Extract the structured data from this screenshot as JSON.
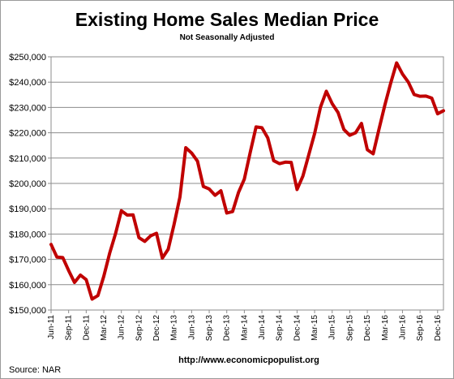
{
  "chart_data": {
    "type": "line",
    "title": "Existing Home Sales Median Price",
    "subtitle": "Not Seasonally Adjusted",
    "ylim": [
      150000,
      250000
    ],
    "yticks": [
      "$150,000",
      "$160,000",
      "$170,000",
      "$180,000",
      "$190,000",
      "$200,000",
      "$210,000",
      "$220,000",
      "$230,000",
      "$240,000",
      "$250,000"
    ],
    "ytick_values": [
      150000,
      160000,
      170000,
      180000,
      190000,
      200000,
      210000,
      220000,
      230000,
      240000,
      250000
    ],
    "xticks": [
      "Jun-11",
      "Sep-11",
      "Dec-11",
      "Mar-12",
      "Jun-12",
      "Sep-12",
      "Dec-12",
      "Mar-13",
      "Jun-13",
      "Sep-13",
      "Dec-13",
      "Mar-14",
      "Jun-14",
      "Sep-14",
      "Dec-14",
      "Mar-15",
      "Jun-15",
      "Sep-15",
      "Dec-15",
      "Mar-16",
      "Jun-16",
      "Sep-16",
      "Dec-16"
    ],
    "grid": true,
    "line_color": "#c00000",
    "series": [
      {
        "values": [
          175900,
          170900,
          170700,
          165600,
          160900,
          163800,
          162000,
          154300,
          155700,
          163300,
          172400,
          180100,
          189200,
          187500,
          187600,
          178600,
          177100,
          179300,
          180300,
          170500,
          174000,
          183800,
          194600,
          214100,
          212000,
          208800,
          198800,
          197800,
          195300,
          197100,
          188300,
          188900,
          196400,
          201700,
          212200,
          222300,
          222000,
          218000,
          209000,
          207800,
          208400,
          208300,
          197600,
          202900,
          211300,
          219700,
          230100,
          236400,
          231500,
          228000,
          221300,
          219000,
          220000,
          223700,
          213300,
          211700,
          221500,
          231000,
          239700,
          247600,
          243200,
          240000,
          235100,
          234400,
          234500,
          233700,
          227500,
          228700
        ]
      }
    ]
  },
  "source_label": "Source:  NAR",
  "url_label": "http://www.economicpopulist.org"
}
